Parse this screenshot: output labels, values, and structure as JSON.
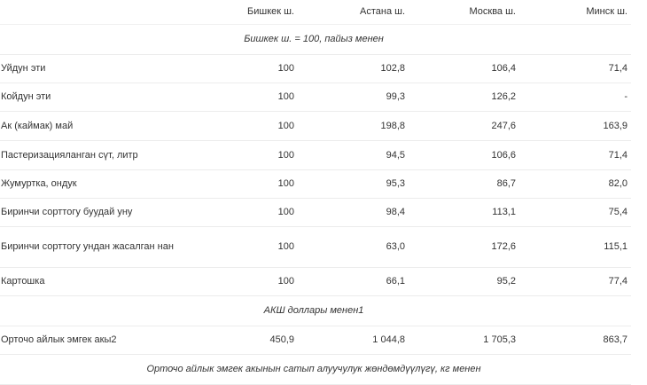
{
  "table": {
    "headers": [
      "",
      "Бишкек ш.",
      "Астана ш.",
      "Москва ш.",
      "Минск ш."
    ],
    "section1": "Бишкек ш. = 100, пайыз менен",
    "rows1": [
      {
        "name": "Уйдун эти",
        "values": [
          "100",
          "102,8",
          "106,4",
          "71,4"
        ]
      },
      {
        "name": "Койдун эти",
        "values": [
          "100",
          "99,3",
          "126,2",
          "-"
        ]
      },
      {
        "name": "Ак (каймак) май",
        "values": [
          "100",
          "198,8",
          "247,6",
          "163,9"
        ]
      },
      {
        "name": "Пастеризацияланган сүт, литр",
        "values": [
          "100",
          "94,5",
          "106,6",
          "71,4"
        ]
      },
      {
        "name": "Жумуртка, ондук",
        "values": [
          "100",
          "95,3",
          "86,7",
          "82,0"
        ]
      },
      {
        "name": "Биринчи сорттогу буудай уну",
        "values": [
          "100",
          "98,4",
          "113,1",
          "75,4"
        ]
      },
      {
        "name": "Биринчи сорттогу ундан жасалган нан",
        "values": [
          "100",
          "63,0",
          "172,6",
          "115,1"
        ]
      },
      {
        "name": "Картошка",
        "values": [
          "100",
          "66,1",
          "95,2",
          "77,4"
        ]
      }
    ],
    "section2": "АКШ доллары менен1",
    "rows2": [
      {
        "name": "Орточо айлык эмгек акы2",
        "values": [
          "450,9",
          "1 044,8",
          "1 705,3",
          "863,7"
        ]
      }
    ],
    "section3": "Орточо айлык эмгек акынын сатып алуучулук жөндөмдүүлүгү, кг менен"
  }
}
